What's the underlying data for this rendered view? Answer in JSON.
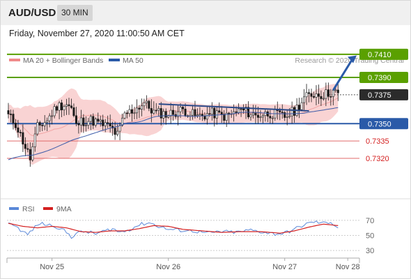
{
  "header": {
    "symbol": "AUD/USD",
    "timeframe": "30 MIN"
  },
  "datetime": "Friday, November 27, 2020 11:00:50 AM CET",
  "colors": {
    "resistance": "#5aa000",
    "support": "#2a5aa8",
    "minor_support": "#e06a6a",
    "bollinger": "#f7c4c4",
    "ma50": "#3a5aa8",
    "rsi": "#5a88d8",
    "rsi_ma": "#d42020",
    "current": "#2b2b2b"
  },
  "chart_data": [
    {
      "type": "candlestick",
      "legend": [
        {
          "label": "MA 20 + Bollinger Bands",
          "color": "#f08a8a"
        },
        {
          "label": "MA 50",
          "color": "#2a5aa8"
        }
      ],
      "watermark": "Research © 2020 Trading Central",
      "ylim": [
        0.7288,
        0.7422
      ],
      "levels": [
        {
          "value": 0.741,
          "label": "0.7410",
          "kind": "resistance"
        },
        {
          "value": 0.739,
          "label": "0.7390",
          "kind": "resistance"
        },
        {
          "value": 0.7375,
          "label": "0.7375",
          "kind": "current"
        },
        {
          "value": 0.735,
          "label": "0.7350",
          "kind": "support"
        },
        {
          "value": 0.7335,
          "label": "0.7335",
          "kind": "minor_support"
        },
        {
          "value": 0.732,
          "label": "0.7320",
          "kind": "minor_support"
        }
      ],
      "x_labels": [
        {
          "label": "Nov 25",
          "bar": 18
        },
        {
          "label": "Nov 26",
          "bar": 66
        },
        {
          "label": "Nov 27",
          "bar": 114
        },
        {
          "label": "Nov 28",
          "bar": 140
        }
      ],
      "close_anchors": [
        [
          0,
          0.7357
        ],
        [
          3,
          0.735
        ],
        [
          6,
          0.7335
        ],
        [
          9,
          0.732
        ],
        [
          12,
          0.7347
        ],
        [
          16,
          0.7353
        ],
        [
          20,
          0.7365
        ],
        [
          24,
          0.7367
        ],
        [
          26,
          0.7363
        ],
        [
          28,
          0.7348
        ],
        [
          30,
          0.7352
        ],
        [
          34,
          0.7353
        ],
        [
          38,
          0.735
        ],
        [
          42,
          0.7347
        ],
        [
          45,
          0.734
        ],
        [
          48,
          0.7358
        ],
        [
          52,
          0.7362
        ],
        [
          56,
          0.7368
        ],
        [
          60,
          0.736
        ],
        [
          66,
          0.7358
        ],
        [
          72,
          0.7362
        ],
        [
          78,
          0.7356
        ],
        [
          84,
          0.7359
        ],
        [
          90,
          0.7356
        ],
        [
          96,
          0.7362
        ],
        [
          102,
          0.7357
        ],
        [
          108,
          0.7359
        ],
        [
          114,
          0.7356
        ],
        [
          118,
          0.7361
        ],
        [
          122,
          0.7372
        ],
        [
          126,
          0.7376
        ],
        [
          130,
          0.7375
        ],
        [
          134,
          0.7378
        ],
        [
          136,
          0.7375
        ]
      ]
    },
    {
      "type": "line",
      "title": "RSI",
      "legend": [
        {
          "label": "RSI",
          "color": "#5a88d8"
        },
        {
          "label": "9MA",
          "color": "#d42020"
        }
      ],
      "ylim": [
        20,
        80
      ],
      "ticks": [
        70,
        50,
        30
      ],
      "rsi_anchors": [
        [
          0,
          68
        ],
        [
          3,
          62
        ],
        [
          6,
          55
        ],
        [
          8,
          51
        ],
        [
          10,
          58
        ],
        [
          13,
          66
        ],
        [
          16,
          64
        ],
        [
          19,
          63
        ],
        [
          22,
          58
        ],
        [
          24,
          54
        ],
        [
          26,
          48
        ],
        [
          28,
          53
        ],
        [
          32,
          55
        ],
        [
          36,
          52
        ],
        [
          40,
          56
        ],
        [
          43,
          59
        ],
        [
          46,
          54
        ],
        [
          50,
          58
        ],
        [
          54,
          64
        ],
        [
          58,
          67
        ],
        [
          62,
          62
        ],
        [
          66,
          58
        ],
        [
          70,
          57
        ],
        [
          76,
          56
        ],
        [
          82,
          53
        ],
        [
          88,
          55
        ],
        [
          94,
          54
        ],
        [
          100,
          57
        ],
        [
          106,
          54
        ],
        [
          110,
          52
        ],
        [
          114,
          53
        ],
        [
          118,
          58
        ],
        [
          122,
          64
        ],
        [
          126,
          68
        ],
        [
          130,
          66
        ],
        [
          133,
          68
        ],
        [
          136,
          60
        ]
      ],
      "ma_anchors": [
        [
          0,
          66
        ],
        [
          6,
          62
        ],
        [
          12,
          60
        ],
        [
          18,
          62
        ],
        [
          24,
          60
        ],
        [
          30,
          55
        ],
        [
          36,
          54
        ],
        [
          42,
          56
        ],
        [
          48,
          56
        ],
        [
          54,
          59
        ],
        [
          60,
          63
        ],
        [
          66,
          62
        ],
        [
          72,
          58
        ],
        [
          80,
          56
        ],
        [
          88,
          54
        ],
        [
          96,
          55
        ],
        [
          104,
          55
        ],
        [
          112,
          53
        ],
        [
          118,
          56
        ],
        [
          124,
          61
        ],
        [
          130,
          65
        ],
        [
          136,
          63
        ]
      ]
    }
  ]
}
